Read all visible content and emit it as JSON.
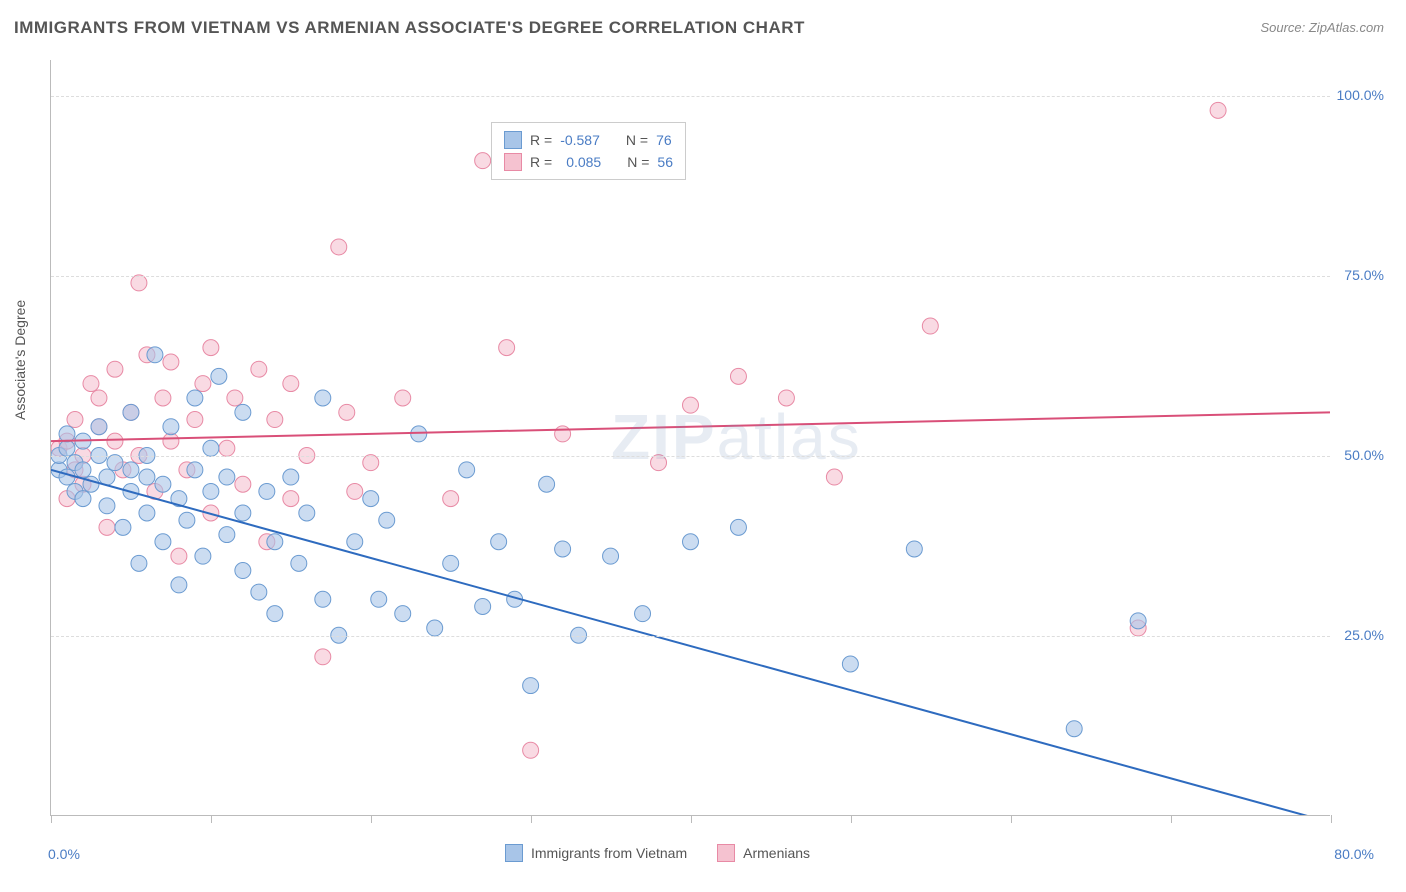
{
  "title": "IMMIGRANTS FROM VIETNAM VS ARMENIAN ASSOCIATE'S DEGREE CORRELATION CHART",
  "source": "Source: ZipAtlas.com",
  "watermark_part1": "ZIP",
  "watermark_part2": "atlas",
  "y_axis_label": "Associate's Degree",
  "legend_bottom": {
    "series1": "Immigrants from Vietnam",
    "series2": "Armenians"
  },
  "legend_top": {
    "row1": {
      "r_label": "R =",
      "r_value": "-0.587",
      "n_label": "N =",
      "n_value": "76"
    },
    "row2": {
      "r_label": "R =",
      "r_value": "0.085",
      "n_label": "N =",
      "n_value": "56"
    }
  },
  "chart": {
    "type": "scatter",
    "xlim": [
      0,
      80
    ],
    "ylim": [
      0,
      105
    ],
    "x_ticks": [
      0,
      10,
      20,
      30,
      40,
      50,
      60,
      70,
      80
    ],
    "x_tick_labels": {
      "first": "0.0%",
      "last": "80.0%"
    },
    "y_ticks": [
      25,
      50,
      75,
      100
    ],
    "y_tick_labels": [
      "25.0%",
      "50.0%",
      "75.0%",
      "100.0%"
    ],
    "background_color": "#ffffff",
    "grid_color": "#dddddd",
    "axis_color": "#bbbbbb",
    "marker_radius": 8,
    "marker_opacity": 0.6,
    "series": [
      {
        "name": "Immigrants from Vietnam",
        "color_fill": "#a8c5e8",
        "color_stroke": "#6b9bd1",
        "line_color": "#2e6bbf",
        "line_width": 2,
        "trend": {
          "x1": 0,
          "y1": 48,
          "x2": 80,
          "y2": -1
        },
        "points": [
          [
            0.5,
            48
          ],
          [
            0.5,
            50
          ],
          [
            1,
            47
          ],
          [
            1,
            51
          ],
          [
            1,
            53
          ],
          [
            1.5,
            45
          ],
          [
            1.5,
            49
          ],
          [
            2,
            44
          ],
          [
            2,
            48
          ],
          [
            2,
            52
          ],
          [
            2.5,
            46
          ],
          [
            3,
            50
          ],
          [
            3,
            54
          ],
          [
            3.5,
            43
          ],
          [
            3.5,
            47
          ],
          [
            4,
            49
          ],
          [
            4.5,
            40
          ],
          [
            5,
            45
          ],
          [
            5,
            48
          ],
          [
            5,
            56
          ],
          [
            5.5,
            35
          ],
          [
            6,
            42
          ],
          [
            6,
            47
          ],
          [
            6,
            50
          ],
          [
            6.5,
            64
          ],
          [
            7,
            38
          ],
          [
            7,
            46
          ],
          [
            7.5,
            54
          ],
          [
            8,
            32
          ],
          [
            8,
            44
          ],
          [
            8.5,
            41
          ],
          [
            9,
            48
          ],
          [
            9,
            58
          ],
          [
            9.5,
            36
          ],
          [
            10,
            45
          ],
          [
            10,
            51
          ],
          [
            10.5,
            61
          ],
          [
            11,
            39
          ],
          [
            11,
            47
          ],
          [
            12,
            34
          ],
          [
            12,
            42
          ],
          [
            12,
            56
          ],
          [
            13,
            31
          ],
          [
            13.5,
            45
          ],
          [
            14,
            28
          ],
          [
            14,
            38
          ],
          [
            15,
            47
          ],
          [
            15.5,
            35
          ],
          [
            16,
            42
          ],
          [
            17,
            30
          ],
          [
            17,
            58
          ],
          [
            18,
            25
          ],
          [
            19,
            38
          ],
          [
            20,
            44
          ],
          [
            20.5,
            30
          ],
          [
            21,
            41
          ],
          [
            22,
            28
          ],
          [
            23,
            53
          ],
          [
            24,
            26
          ],
          [
            25,
            35
          ],
          [
            26,
            48
          ],
          [
            27,
            29
          ],
          [
            28,
            38
          ],
          [
            29,
            30
          ],
          [
            30,
            18
          ],
          [
            31,
            46
          ],
          [
            32,
            37
          ],
          [
            33,
            25
          ],
          [
            35,
            36
          ],
          [
            37,
            28
          ],
          [
            40,
            38
          ],
          [
            43,
            40
          ],
          [
            50,
            21
          ],
          [
            54,
            37
          ],
          [
            64,
            12
          ],
          [
            68,
            27
          ]
        ]
      },
      {
        "name": "Armenians",
        "color_fill": "#f5c2d0",
        "color_stroke": "#e88aa5",
        "line_color": "#d94f78",
        "line_width": 2,
        "trend": {
          "x1": 0,
          "y1": 52,
          "x2": 80,
          "y2": 56
        },
        "points": [
          [
            0.5,
            51
          ],
          [
            1,
            44
          ],
          [
            1,
            52
          ],
          [
            1.5,
            48
          ],
          [
            1.5,
            55
          ],
          [
            2,
            46
          ],
          [
            2,
            50
          ],
          [
            2.5,
            60
          ],
          [
            3,
            54
          ],
          [
            3,
            58
          ],
          [
            3.5,
            40
          ],
          [
            4,
            52
          ],
          [
            4,
            62
          ],
          [
            4.5,
            48
          ],
          [
            5,
            56
          ],
          [
            5.5,
            50
          ],
          [
            5.5,
            74
          ],
          [
            6,
            64
          ],
          [
            6.5,
            45
          ],
          [
            7,
            58
          ],
          [
            7.5,
            52
          ],
          [
            7.5,
            63
          ],
          [
            8,
            36
          ],
          [
            8.5,
            48
          ],
          [
            9,
            55
          ],
          [
            9.5,
            60
          ],
          [
            10,
            42
          ],
          [
            10,
            65
          ],
          [
            11,
            51
          ],
          [
            11.5,
            58
          ],
          [
            12,
            46
          ],
          [
            13,
            62
          ],
          [
            13.5,
            38
          ],
          [
            14,
            55
          ],
          [
            15,
            44
          ],
          [
            15,
            60
          ],
          [
            16,
            50
          ],
          [
            17,
            22
          ],
          [
            18,
            79
          ],
          [
            18.5,
            56
          ],
          [
            19,
            45
          ],
          [
            20,
            49
          ],
          [
            22,
            58
          ],
          [
            25,
            44
          ],
          [
            27,
            91
          ],
          [
            28.5,
            65
          ],
          [
            30,
            9
          ],
          [
            32,
            53
          ],
          [
            38,
            49
          ],
          [
            40,
            57
          ],
          [
            43,
            61
          ],
          [
            46,
            58
          ],
          [
            49,
            47
          ],
          [
            55,
            68
          ],
          [
            68,
            26
          ],
          [
            73,
            98
          ]
        ]
      }
    ]
  }
}
